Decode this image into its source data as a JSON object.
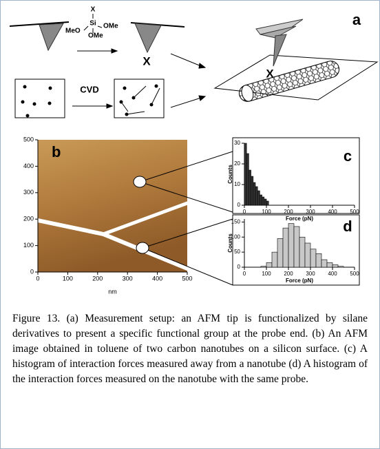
{
  "panel_labels": {
    "a": "a",
    "b": "b",
    "c": "c",
    "d": "d"
  },
  "scheme": {
    "reagent": {
      "x": "X",
      "si": "Si",
      "ome_right": "OMe",
      "meo": "MeO",
      "ome_bottom": "OMe"
    },
    "tip_group_1": "X",
    "tip_group_2": "X",
    "cvd": "CVD"
  },
  "chart_data": [
    {
      "type": "image",
      "xlabel": "nm",
      "xlim": [
        0,
        500
      ],
      "ylim": [
        0,
        500
      ],
      "xticks": [
        0,
        100,
        200,
        300,
        400,
        500
      ],
      "yticks": [
        0,
        100,
        200,
        300,
        400,
        500
      ]
    },
    {
      "type": "histogram",
      "ylabel": "Counts",
      "xlabel": "Force (pN)",
      "bins": [
        0,
        10,
        20,
        30,
        40,
        50,
        60,
        70,
        80,
        90,
        100,
        110
      ],
      "values": [
        30,
        25,
        17,
        14,
        11,
        9,
        7,
        5,
        4,
        3,
        2
      ],
      "color": "#333333",
      "xlim": [
        0,
        500
      ],
      "ylim": [
        0,
        30
      ],
      "xticks": [
        0,
        100,
        200,
        300,
        400,
        500
      ],
      "yticks": [
        0,
        10,
        20,
        30
      ]
    },
    {
      "type": "histogram",
      "ylabel": "Counts",
      "xlabel": "Force (pN)",
      "bins": [
        75,
        100,
        125,
        150,
        175,
        200,
        225,
        250,
        275,
        300,
        325,
        350,
        375,
        400,
        425,
        450
      ],
      "values": [
        3,
        15,
        50,
        95,
        130,
        145,
        135,
        100,
        80,
        60,
        45,
        25,
        15,
        8,
        3
      ],
      "color": "#c8c8c8",
      "xlim": [
        0,
        500
      ],
      "ylim": [
        0,
        160
      ],
      "xticks": [
        0,
        100,
        200,
        300,
        400,
        500
      ],
      "yticks": [
        0,
        50,
        100,
        150
      ]
    }
  ],
  "caption": "Figure 13. (a) Measurement setup: an AFM tip is functionalized by silane derivatives to present a specific functional group at the probe end. (b) An AFM image obtained in toluene of two carbon nanotubes on a silicon surface. (c) A histogram of interaction forces measured away from a nanotube (d) A histogram of the interaction forces measured on the nanotube with the same probe."
}
